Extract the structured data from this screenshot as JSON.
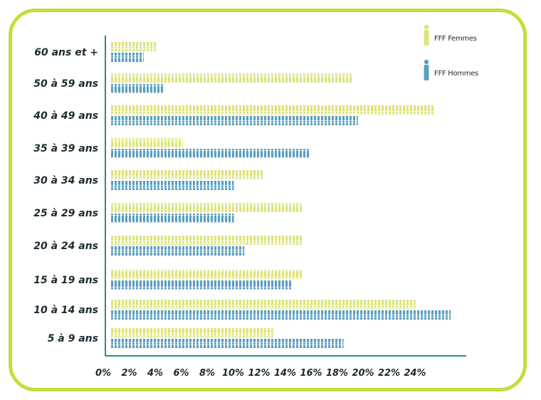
{
  "chart_data": {
    "type": "bar",
    "orientation": "horizontal",
    "categories": [
      "60 ans et +",
      "50 à 59 ans",
      "40 à 49 ans",
      "35 à 39 ans",
      "30 à 34 ans",
      "25 à 29 ans",
      "20 à 24 ans",
      "15 à 19 ans",
      "10 à 14 ans",
      "5 à 9 ans"
    ],
    "series": [
      {
        "name": "FFF Femmes",
        "color": "#dde47a",
        "values": [
          3.5,
          18.5,
          24.7,
          5.5,
          11.6,
          14.6,
          14.6,
          14.6,
          23.3,
          12.4
        ]
      },
      {
        "name": "FFF Hommes",
        "color": "#5b9fc0",
        "values": [
          2.5,
          4.0,
          18.9,
          15.2,
          9.4,
          9.4,
          10.2,
          13.8,
          26.0,
          17.8
        ]
      }
    ],
    "xticks": [
      "0%",
      "2%",
      "4%",
      "6%",
      "8%",
      "10%",
      "12%",
      "14%",
      "16%",
      "18%",
      "20%",
      "22%",
      "24%"
    ],
    "xlim": [
      0,
      27
    ],
    "grid": false,
    "legend_position": "top-right",
    "bar_style": "pictogram-people",
    "frame_color": "#c8dc3a",
    "axis_color": "#2a8a8a"
  }
}
